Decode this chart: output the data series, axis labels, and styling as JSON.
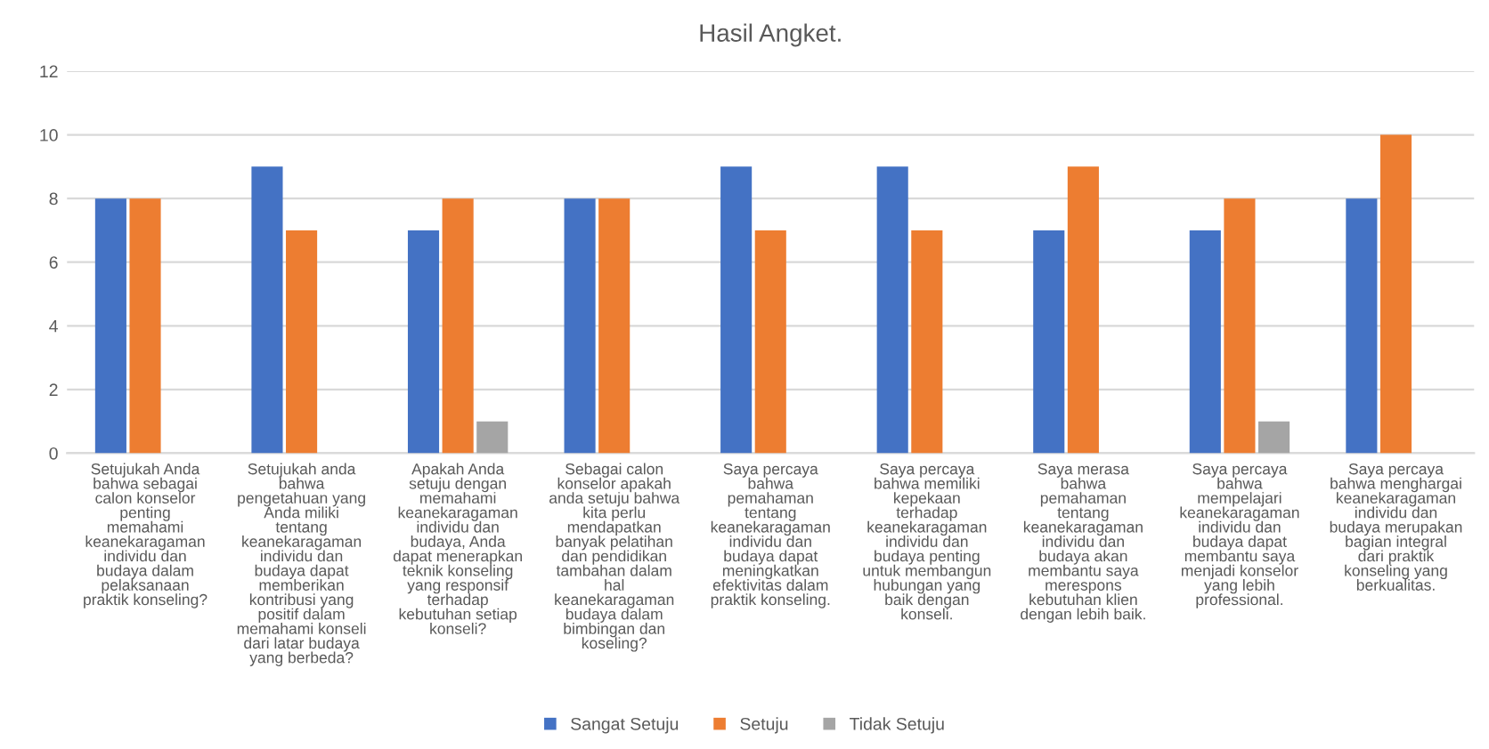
{
  "chart_data": {
    "type": "bar",
    "title": "Hasil Angket.",
    "categories": [
      "Setujukah Anda\nbahwa sebagai\ncalon konselor\npenting\nmemahami\nkeanekaragaman\nindividu dan\nbudaya dalam\npelaksanaan\npraktik konseling?",
      "Setujukah anda\nbahwa\npengetahuan yang\nAnda miliki\ntentang\nkeanekaragaman\nindividu dan\nbudaya dapat\nmemberikan\nkontribusi yang\npositif dalam\nmemahami konseli\ndari latar budaya\nyang berbeda?",
      "Apakah Anda\nsetuju dengan\nmemahami\nkeanekaragaman\nindividu dan\nbudaya, Anda\ndapat menerapkan\nteknik konseling\nyang responsif\nterhadap\nkebutuhan setiap\nkonseli?",
      "Sebagai calon\nkonselor apakah\nanda setuju bahwa\nkita perlu\nmendapatkan\nbanyak pelatihan\ndan pendidikan\ntambahan dalam\nhal\nkeanekaragaman\nbudaya dalam\nbimbingan dan\nkoseling?",
      "Saya percaya\nbahwa\npemahaman\ntentang\nkeanekaragaman\nindividu dan\nbudaya dapat\nmeningkatkan\nefektivitas dalam\npraktik konseling.",
      "Saya percaya\nbahwa memiliki\nkepekaan\nterhadap\nkeanekaragaman\nindividu dan\nbudaya penting\nuntuk membangun\nhubungan yang\nbaik dengan\nkonseli.",
      "Saya merasa\nbahwa\npemahaman\ntentang\nkeanekaragaman\nindividu dan\nbudaya akan\nmembantu saya\nmerespons\nkebutuhan klien\ndengan lebih baik.",
      "Saya percaya\nbahwa\nmempelajari\nkeanekaragaman\nindividu dan\nbudaya dapat\nmembantu saya\nmenjadi konselor\nyang lebih\nprofessional.",
      "Saya percaya\nbahwa menghargai\nkeanekaragaman\nindividu dan\nbudaya merupakan\nbagian integral\ndari praktik\nkonseling yang\nberkualitas."
    ],
    "series": [
      {
        "name": "Sangat Setuju",
        "color": "#4472c4",
        "values": [
          8,
          9,
          7,
          8,
          9,
          9,
          7,
          7,
          8
        ]
      },
      {
        "name": "Setuju",
        "color": "#ed7d31",
        "values": [
          8,
          7,
          8,
          8,
          7,
          7,
          9,
          8,
          10
        ]
      },
      {
        "name": "Tidak Setuju",
        "color": "#a5a5a5",
        "values": [
          0,
          0,
          1,
          0,
          0,
          0,
          0,
          1,
          0
        ]
      }
    ],
    "ylim": [
      0,
      12
    ],
    "yticks": [
      0,
      2,
      4,
      6,
      8,
      10,
      12
    ],
    "grid": "y",
    "legend": "bottom"
  }
}
